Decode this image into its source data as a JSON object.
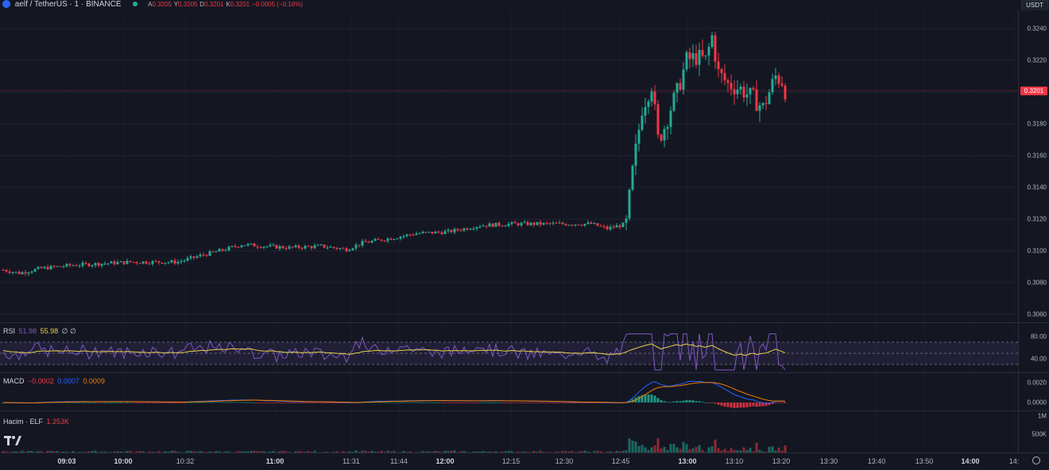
{
  "header": {
    "symbol": "aelf / TetherUS · 1 · BINANCE",
    "o_label": "A",
    "o_value": "0.3205",
    "h_label": "Y",
    "h_value": "0.3205",
    "l_label": "D",
    "l_value": "0.3201",
    "c_label": "K",
    "c_value": "0.3201",
    "change": "−0.0005 (−0.16%)"
  },
  "currency_button": "USDT",
  "last_price_label": "0.3201",
  "colors": {
    "up": "#22ab94",
    "down": "#f23645",
    "bg": "#141722",
    "rsi": "#7e57c2",
    "rsi_ma": "#e8d24a",
    "macd": "#2962ff",
    "signal": "#f57c00"
  },
  "chart_data": [
    {
      "type": "candlestick",
      "ylim": [
        0.305,
        0.325
      ],
      "price_axis_ticks": [
        "0.3240",
        "0.3220",
        "0.3200",
        "0.3180",
        "0.3160",
        "0.3140",
        "0.3120",
        "0.3100",
        "0.3080",
        "0.3060"
      ],
      "time_axis_ticks": [
        {
          "label": "09:03",
          "bold": true
        },
        {
          "label": "10:00",
          "bold": true
        },
        {
          "label": "10:32",
          "bold": false
        },
        {
          "label": "11:00",
          "bold": true
        },
        {
          "label": "11:31",
          "bold": false
        },
        {
          "label": "11:44",
          "bold": false
        },
        {
          "label": "12:00",
          "bold": true
        },
        {
          "label": "12:15",
          "bold": false
        },
        {
          "label": "12:30",
          "bold": false
        },
        {
          "label": "12:45",
          "bold": false
        },
        {
          "label": "13:00",
          "bold": true
        },
        {
          "label": "13:10",
          "bold": false
        },
        {
          "label": "13:20",
          "bold": false
        },
        {
          "label": "13:30",
          "bold": false
        },
        {
          "label": "13:40",
          "bold": false
        },
        {
          "label": "13:50",
          "bold": false
        },
        {
          "label": "14:00",
          "bold": true
        },
        {
          "label": "14:",
          "bold": false
        }
      ],
      "last_price": 0.3201
    },
    {
      "type": "line",
      "name": "RSI",
      "values_label_rsi": "51.98",
      "values_label_ma": "55.98",
      "values_label_extra": "∅ ∅",
      "axis_ticks": [
        "80.00",
        "40.00"
      ],
      "bands": [
        70,
        30
      ]
    },
    {
      "type": "line",
      "name": "MACD",
      "hist_label": "−0.0002",
      "macd_label": "0.0007",
      "signal_label": "0.0009",
      "axis_ticks": [
        "0.0020",
        "0.0000"
      ]
    },
    {
      "type": "bar",
      "name": "Hacim · ELF",
      "value_label": "1.253K",
      "axis_ticks": [
        "1M",
        "500K"
      ]
    }
  ]
}
